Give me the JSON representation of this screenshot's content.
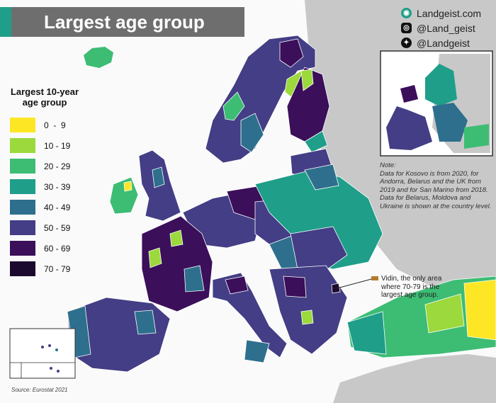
{
  "title": "Largest age group",
  "social": {
    "website": "Landgeist.com",
    "instagram": "@Land_geist",
    "twitter": "@Landgeist"
  },
  "legend": {
    "title_line1": "Largest 10-year",
    "title_line2": "age group",
    "items": [
      {
        "label": "0  -  9",
        "color": "#fde725"
      },
      {
        "label": "10 - 19",
        "color": "#9bd93c"
      },
      {
        "label": "20 - 29",
        "color": "#3dbc74"
      },
      {
        "label": "30 - 39",
        "color": "#1f9e89"
      },
      {
        "label": "40 - 49",
        "color": "#2e6f8e"
      },
      {
        "label": "50 - 59",
        "color": "#433e85"
      },
      {
        "label": "60 - 69",
        "color": "#3b0f5a"
      },
      {
        "label": "70 - 79",
        "color": "#1c0a2e"
      }
    ]
  },
  "note": {
    "heading": "Note:",
    "line1": "Data for Kosovo is from 2020, for",
    "line2": "Andorra, Belarus and the UK from",
    "line3": "2019 and for San Marino from 2018.",
    "line4": "Data for Belarus, Moldova and",
    "line5": "Ukraine is shown at the country level."
  },
  "callout": {
    "line1": "Vidin, the only area",
    "line2": "where 70-79 is the",
    "line3": "largest age group."
  },
  "source": "Source: Eurostat 2021",
  "colors": {
    "sea": "#ffffff",
    "non_data_land": "#c8c8c8",
    "border": "#ffffff",
    "callout_line": "#222222"
  }
}
